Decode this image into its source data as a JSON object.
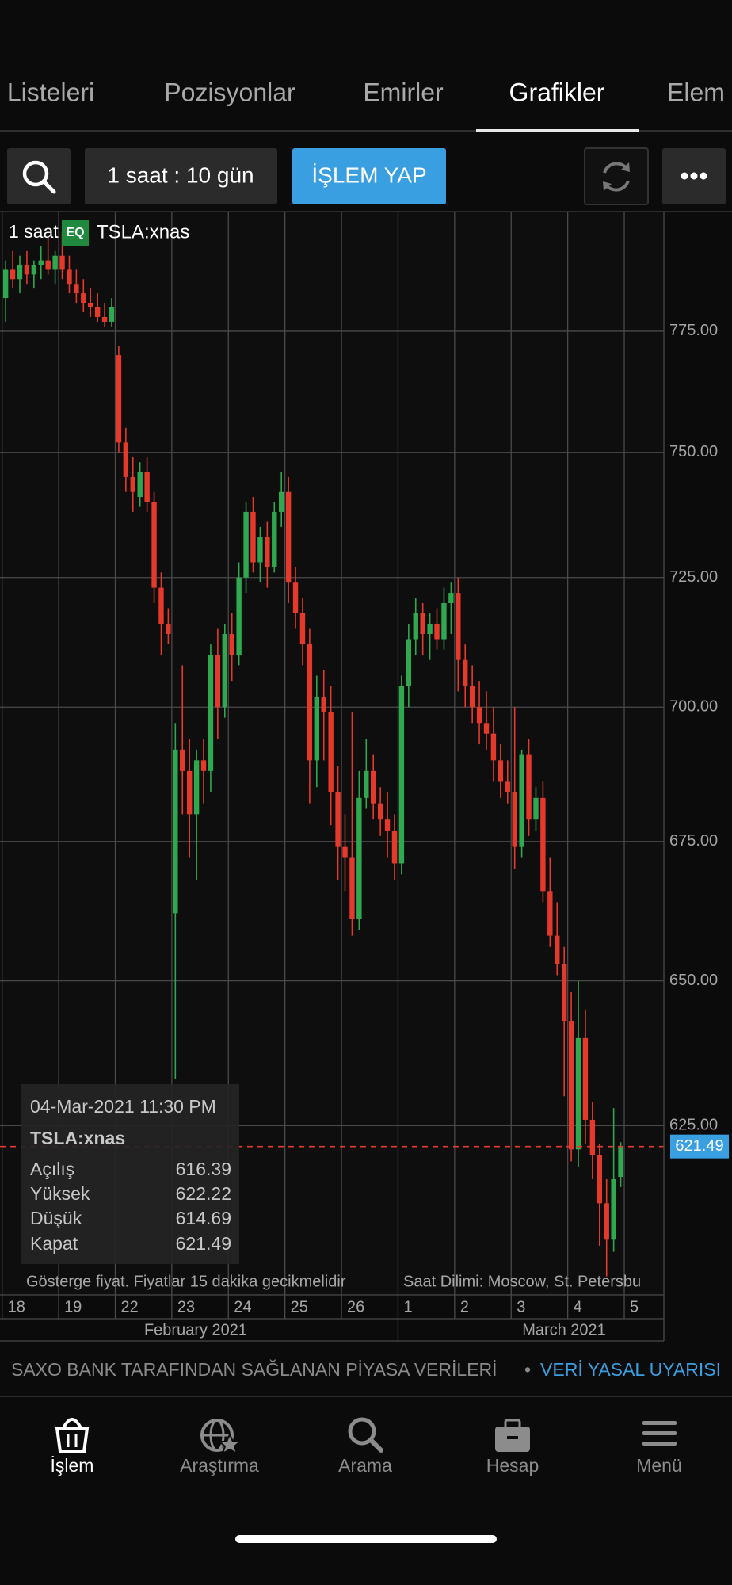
{
  "tabs": [
    "Listeleri",
    "Pozisyonlar",
    "Emirler",
    "Grafikler",
    "Elem"
  ],
  "toolbar": {
    "interval": "1 saat : 10 gün",
    "trade_button": "İŞLEM YAP"
  },
  "chart_header": {
    "interval": "1 saat",
    "badge": "EQ",
    "symbol": "TSLA:xnas"
  },
  "tooltip": {
    "datetime": "04-Mar-2021 11:30 PM",
    "symbol": "TSLA:xnas",
    "labels": [
      "Açılış",
      "Yüksek",
      "Düşük",
      "Kapat"
    ]
  },
  "chart_data": {
    "type": "candlestick",
    "up_color": "#2fa84f",
    "down_color": "#e5392c",
    "log_scale": true,
    "grid": true,
    "xlim": [
      -0.3,
      93.6
    ],
    "xticks": [
      {
        "value": 0,
        "label": "18"
      },
      {
        "value": 8,
        "label": "19"
      },
      {
        "value": 16,
        "label": "22"
      },
      {
        "value": 24,
        "label": "23"
      },
      {
        "value": 32,
        "label": "24"
      },
      {
        "value": 40,
        "label": "25"
      },
      {
        "value": 48,
        "label": "26"
      },
      {
        "value": 56,
        "label": "1"
      },
      {
        "value": 64,
        "label": "2"
      },
      {
        "value": 72,
        "label": "3"
      },
      {
        "value": 80,
        "label": "4"
      },
      {
        "value": 88,
        "label": "5"
      }
    ],
    "x_groups": [
      "February 2021",
      "March 2021"
    ],
    "ylim": [
      597,
      800
    ],
    "yticks": [
      {
        "value": 625,
        "label": "625.00"
      },
      {
        "value": 650,
        "label": "650.00"
      },
      {
        "value": 675,
        "label": "675.00"
      },
      {
        "value": 700,
        "label": "700.00"
      },
      {
        "value": 725,
        "label": "725.00"
      },
      {
        "value": 750,
        "label": "750.00"
      },
      {
        "value": 775,
        "label": "775.00"
      }
    ],
    "candles": [
      {
        "open": 782,
        "high": 790,
        "low": 777,
        "close": 788
      },
      {
        "open": 788,
        "high": 792,
        "low": 784,
        "close": 786
      },
      {
        "open": 786,
        "high": 791,
        "low": 783,
        "close": 789
      },
      {
        "open": 789,
        "high": 792,
        "low": 785,
        "close": 787
      },
      {
        "open": 787,
        "high": 790,
        "low": 784,
        "close": 789
      },
      {
        "open": 789,
        "high": 793,
        "low": 786,
        "close": 790
      },
      {
        "open": 790,
        "high": 795,
        "low": 787,
        "close": 788
      },
      {
        "open": 788,
        "high": 792,
        "low": 785,
        "close": 791
      },
      {
        "open": 791,
        "high": 796,
        "low": 786,
        "close": 788
      },
      {
        "open": 788,
        "high": 791,
        "low": 783,
        "close": 785
      },
      {
        "open": 785,
        "high": 788,
        "low": 781,
        "close": 783
      },
      {
        "open": 783,
        "high": 786,
        "low": 779,
        "close": 781
      },
      {
        "open": 781,
        "high": 784,
        "low": 778,
        "close": 780
      },
      {
        "open": 780,
        "high": 783,
        "low": 777,
        "close": 778
      },
      {
        "open": 778,
        "high": 781,
        "low": 776,
        "close": 777
      },
      {
        "open": 777,
        "high": 782,
        "low": 776,
        "close": 780
      },
      {
        "open": 770,
        "high": 772,
        "low": 750,
        "close": 752
      },
      {
        "open": 752,
        "high": 755,
        "low": 742,
        "close": 745
      },
      {
        "open": 745,
        "high": 749,
        "low": 738,
        "close": 742
      },
      {
        "open": 741,
        "high": 748,
        "low": 739,
        "close": 746
      },
      {
        "open": 746,
        "high": 749,
        "low": 738,
        "close": 740
      },
      {
        "open": 740,
        "high": 742,
        "low": 720,
        "close": 723
      },
      {
        "open": 723,
        "high": 726,
        "low": 710,
        "close": 716
      },
      {
        "open": 716,
        "high": 719,
        "low": 712,
        "close": 714
      },
      {
        "open": 662,
        "high": 697,
        "low": 633,
        "close": 692
      },
      {
        "open": 692,
        "high": 708,
        "low": 680,
        "close": 688
      },
      {
        "open": 688,
        "high": 694,
        "low": 672,
        "close": 680
      },
      {
        "open": 680,
        "high": 692,
        "low": 668,
        "close": 690
      },
      {
        "open": 690,
        "high": 694,
        "low": 682,
        "close": 688
      },
      {
        "open": 688,
        "high": 712,
        "low": 684,
        "close": 710
      },
      {
        "open": 710,
        "high": 715,
        "low": 694,
        "close": 700
      },
      {
        "open": 700,
        "high": 716,
        "low": 698,
        "close": 714
      },
      {
        "open": 714,
        "high": 718,
        "low": 705,
        "close": 710
      },
      {
        "open": 710,
        "high": 728,
        "low": 708,
        "close": 725
      },
      {
        "open": 725,
        "high": 740,
        "low": 722,
        "close": 738
      },
      {
        "open": 738,
        "high": 741,
        "low": 726,
        "close": 728
      },
      {
        "open": 728,
        "high": 735,
        "low": 724,
        "close": 733
      },
      {
        "open": 733,
        "high": 736,
        "low": 723,
        "close": 727
      },
      {
        "open": 727,
        "high": 740,
        "low": 726,
        "close": 738
      },
      {
        "open": 738,
        "high": 746,
        "low": 735,
        "close": 742
      },
      {
        "open": 742,
        "high": 745,
        "low": 720,
        "close": 724
      },
      {
        "open": 724,
        "high": 727,
        "low": 715,
        "close": 718
      },
      {
        "open": 718,
        "high": 721,
        "low": 708,
        "close": 712
      },
      {
        "open": 712,
        "high": 715,
        "low": 682,
        "close": 690
      },
      {
        "open": 690,
        "high": 706,
        "low": 685,
        "close": 702
      },
      {
        "open": 702,
        "high": 707,
        "low": 690,
        "close": 699
      },
      {
        "open": 699,
        "high": 704,
        "low": 678,
        "close": 684
      },
      {
        "open": 684,
        "high": 689,
        "low": 668,
        "close": 674
      },
      {
        "open": 674,
        "high": 680,
        "low": 666,
        "close": 672
      },
      {
        "open": 672,
        "high": 699,
        "low": 658,
        "close": 661
      },
      {
        "open": 661,
        "high": 688,
        "low": 659,
        "close": 683
      },
      {
        "open": 683,
        "high": 694,
        "low": 681,
        "close": 688
      },
      {
        "open": 688,
        "high": 691,
        "low": 679,
        "close": 682
      },
      {
        "open": 682,
        "high": 685,
        "low": 676,
        "close": 679
      },
      {
        "open": 679,
        "high": 684,
        "low": 672,
        "close": 677
      },
      {
        "open": 677,
        "high": 680,
        "low": 668,
        "close": 671
      },
      {
        "open": 671,
        "high": 706,
        "low": 669,
        "close": 704
      },
      {
        "open": 704,
        "high": 716,
        "low": 700,
        "close": 713
      },
      {
        "open": 713,
        "high": 721,
        "low": 710,
        "close": 718
      },
      {
        "open": 718,
        "high": 720,
        "low": 710,
        "close": 714
      },
      {
        "open": 714,
        "high": 718,
        "low": 709,
        "close": 716
      },
      {
        "open": 716,
        "high": 719,
        "low": 711,
        "close": 713
      },
      {
        "open": 713,
        "high": 723,
        "low": 711,
        "close": 720
      },
      {
        "open": 720,
        "high": 724,
        "low": 714,
        "close": 722
      },
      {
        "open": 722,
        "high": 725,
        "low": 703,
        "close": 709
      },
      {
        "open": 709,
        "high": 712,
        "low": 700,
        "close": 704
      },
      {
        "open": 704,
        "high": 708,
        "low": 697,
        "close": 700
      },
      {
        "open": 700,
        "high": 705,
        "low": 693,
        "close": 697
      },
      {
        "open": 697,
        "high": 703,
        "low": 692,
        "close": 695
      },
      {
        "open": 695,
        "high": 700,
        "low": 686,
        "close": 690
      },
      {
        "open": 690,
        "high": 693,
        "low": 683,
        "close": 686
      },
      {
        "open": 686,
        "high": 690,
        "low": 682,
        "close": 684
      },
      {
        "open": 684,
        "high": 700,
        "low": 670,
        "close": 674
      },
      {
        "open": 674,
        "high": 692,
        "low": 672,
        "close": 691
      },
      {
        "open": 691,
        "high": 694,
        "low": 676,
        "close": 679
      },
      {
        "open": 679,
        "high": 685,
        "low": 677,
        "close": 683
      },
      {
        "open": 683,
        "high": 686,
        "low": 664,
        "close": 666
      },
      {
        "open": 666,
        "high": 672,
        "low": 656,
        "close": 658
      },
      {
        "open": 658,
        "high": 664,
        "low": 651,
        "close": 653
      },
      {
        "open": 653,
        "high": 656,
        "low": 630,
        "close": 643
      },
      {
        "open": 643,
        "high": 648,
        "low": 619,
        "close": 621
      },
      {
        "open": 621,
        "high": 650,
        "low": 618,
        "close": 640
      },
      {
        "open": 640,
        "high": 645,
        "low": 622,
        "close": 626
      },
      {
        "open": 626,
        "high": 629,
        "low": 616,
        "close": 620
      },
      {
        "open": 620,
        "high": 622,
        "low": 605,
        "close": 612
      },
      {
        "open": 612,
        "high": 616,
        "low": 600,
        "close": 606
      },
      {
        "open": 606,
        "high": 628,
        "low": 604,
        "close": 616
      },
      {
        "open": 616.39,
        "high": 622.22,
        "low": 614.69,
        "close": 621.49
      }
    ]
  },
  "notes": {
    "delay": "Gösterge fiyat. Fiyatlar 15 dakika gecikmelidir",
    "timezone": "Saat Dilimi: Moscow, St. Petersbu"
  },
  "disclaimer": {
    "text": "SAXO BANK TARAFINDAN SAĞLANAN PİYASA VERİLERİ",
    "separator": "•",
    "link": "VERİ YASAL UYARISI"
  },
  "nav": [
    "İşlem",
    "Araştırma",
    "Arama",
    "Hesap",
    "Menü"
  ]
}
